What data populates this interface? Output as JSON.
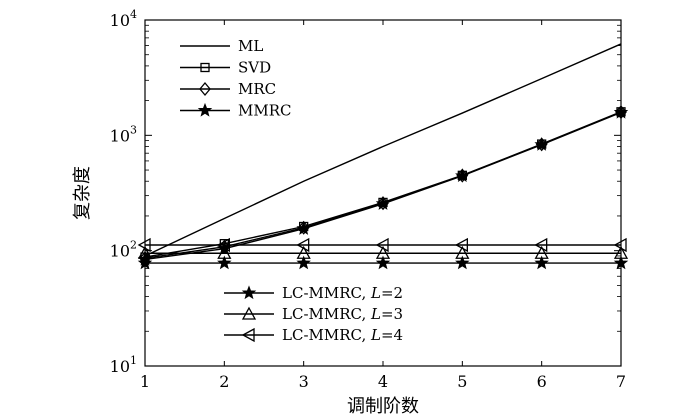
{
  "chart_data": {
    "type": "line",
    "xlabel": "调制阶数",
    "ylabel": "复杂度",
    "xlim": [
      1,
      7
    ],
    "ylim": [
      10,
      10000
    ],
    "yscale": "log",
    "x_ticks": [
      "1",
      "2",
      "3",
      "4",
      "5",
      "6",
      "7"
    ],
    "y_ticks": [
      {
        "value": 10,
        "base": "10",
        "exp": "1"
      },
      {
        "value": 100,
        "base": "10",
        "exp": "2"
      },
      {
        "value": 1000,
        "base": "10",
        "exp": "3"
      },
      {
        "value": 10000,
        "base": "10",
        "exp": "4"
      }
    ],
    "grid": false,
    "series": [
      {
        "name": "ML",
        "marker": "none",
        "x": [
          1,
          2,
          3,
          4,
          5,
          6,
          7
        ],
        "y": [
          90,
          190,
          400,
          800,
          1560,
          3100,
          6200
        ]
      },
      {
        "name": "SVD",
        "marker": "square",
        "x": [
          1,
          2,
          3,
          4,
          5,
          6,
          7
        ],
        "y": [
          88,
          115,
          162,
          262,
          450,
          840,
          1600
        ]
      },
      {
        "name": "MRC",
        "marker": "diamond",
        "x": [
          1,
          2,
          3,
          4,
          5,
          6,
          7
        ],
        "y": [
          86,
          108,
          158,
          258,
          448,
          835,
          1590
        ]
      },
      {
        "name": "MMRC",
        "marker": "star",
        "x": [
          1,
          2,
          3,
          4,
          5,
          6,
          7
        ],
        "y": [
          84,
          104,
          155,
          255,
          445,
          830,
          1580
        ]
      },
      {
        "name": "LC-MMRC, L=2",
        "label_main": "LC-MMRC, ",
        "label_var": "L",
        "label_rest": "=2",
        "marker": "star",
        "x": [
          1,
          2,
          3,
          4,
          5,
          6,
          7
        ],
        "y": [
          78,
          78,
          78,
          78,
          78,
          78,
          78
        ]
      },
      {
        "name": "LC-MMRC, L=3",
        "label_main": "LC-MMRC, ",
        "label_var": "L",
        "label_rest": "=3",
        "marker": "triangle-up",
        "x": [
          1,
          2,
          3,
          4,
          5,
          6,
          7
        ],
        "y": [
          95,
          95,
          95,
          95,
          95,
          95,
          95
        ]
      },
      {
        "name": "LC-MMRC, L=4",
        "label_main": "LC-MMRC, ",
        "label_var": "L",
        "label_rest": "=4",
        "marker": "triangle-left",
        "x": [
          1,
          2,
          3,
          4,
          5,
          6,
          7
        ],
        "y": [
          112,
          112,
          112,
          112,
          112,
          112,
          112
        ]
      }
    ],
    "legends": [
      {
        "placement": "top-left",
        "series": [
          0,
          1,
          2,
          3
        ]
      },
      {
        "placement": "bottom-center",
        "series": [
          4,
          5,
          6
        ]
      }
    ]
  }
}
